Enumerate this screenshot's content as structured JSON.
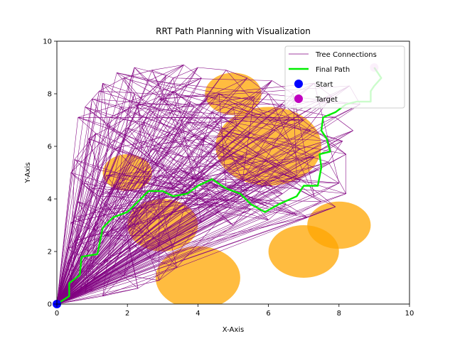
{
  "chart_data": {
    "type": "line",
    "title": "RRT Path Planning with Visualization",
    "xlabel": "X-Axis",
    "ylabel": "Y-Axis",
    "xlim": [
      0,
      10
    ],
    "ylim": [
      0,
      10
    ],
    "x_ticks": [
      "0",
      "2",
      "4",
      "6",
      "8",
      "10"
    ],
    "y_ticks": [
      "0",
      "2",
      "4",
      "6",
      "8",
      "10"
    ],
    "grid": false,
    "legend_position": "top-right",
    "colors": {
      "tree": "#800080",
      "path": "#00ee00",
      "start": "#0000ff",
      "target": "#c000c0",
      "obstacle": "#ffa500"
    },
    "obstacles": [
      {
        "cx": 5.0,
        "cy": 8.0,
        "r": 0.8
      },
      {
        "cx": 6.0,
        "cy": 6.0,
        "r": 1.5
      },
      {
        "cx": 2.0,
        "cy": 5.0,
        "r": 0.7
      },
      {
        "cx": 3.0,
        "cy": 3.0,
        "r": 1.0
      },
      {
        "cx": 4.0,
        "cy": 1.0,
        "r": 1.2
      },
      {
        "cx": 7.0,
        "cy": 2.0,
        "r": 1.0
      },
      {
        "cx": 8.0,
        "cy": 3.0,
        "r": 0.9
      }
    ],
    "series": [
      {
        "name": "Tree Connections",
        "points": [
          [
            0.0,
            0.0
          ],
          [
            0.4,
            0.8
          ],
          [
            0.3,
            1.6
          ],
          [
            0.7,
            1.2
          ],
          [
            0.5,
            2.4
          ],
          [
            0.9,
            2.0
          ],
          [
            0.4,
            3.1
          ],
          [
            1.1,
            2.8
          ],
          [
            0.6,
            3.9
          ],
          [
            1.3,
            3.6
          ],
          [
            0.8,
            4.7
          ],
          [
            1.5,
            4.2
          ],
          [
            0.5,
            5.5
          ],
          [
            1.2,
            5.1
          ],
          [
            0.9,
            6.3
          ],
          [
            1.6,
            5.9
          ],
          [
            0.6,
            7.1
          ],
          [
            1.4,
            6.8
          ],
          [
            1.0,
            7.8
          ],
          [
            1.8,
            7.5
          ],
          [
            1.3,
            8.4
          ],
          [
            2.2,
            8.0
          ],
          [
            1.7,
            8.8
          ],
          [
            2.6,
            8.5
          ],
          [
            2.2,
            9.0
          ],
          [
            3.1,
            8.7
          ],
          [
            3.6,
            9.1
          ],
          [
            4.1,
            8.6
          ],
          [
            2.9,
            7.8
          ],
          [
            3.4,
            7.4
          ],
          [
            2.5,
            6.9
          ],
          [
            3.2,
            6.5
          ],
          [
            2.7,
            5.9
          ],
          [
            3.6,
            5.6
          ],
          [
            2.9,
            4.9
          ],
          [
            3.8,
            4.5
          ],
          [
            2.4,
            4.3
          ],
          [
            3.1,
            3.9
          ],
          [
            4.3,
            4.2
          ],
          [
            4.9,
            3.8
          ],
          [
            5.4,
            4.3
          ],
          [
            4.7,
            5.0
          ],
          [
            5.3,
            5.6
          ],
          [
            4.5,
            6.1
          ],
          [
            5.1,
            6.8
          ],
          [
            4.4,
            7.3
          ],
          [
            5.6,
            7.9
          ],
          [
            6.1,
            8.5
          ],
          [
            6.7,
            8.0
          ],
          [
            7.3,
            8.4
          ],
          [
            7.8,
            7.9
          ],
          [
            8.3,
            8.3
          ],
          [
            8.6,
            7.6
          ],
          [
            7.9,
            7.1
          ],
          [
            8.4,
            6.6
          ],
          [
            7.6,
            6.2
          ],
          [
            8.2,
            5.7
          ],
          [
            7.4,
            5.1
          ],
          [
            8.0,
            4.6
          ],
          [
            7.3,
            4.1
          ],
          [
            7.9,
            3.7
          ],
          [
            7.1,
            3.3
          ],
          [
            6.5,
            3.8
          ],
          [
            6.0,
            3.2
          ],
          [
            5.5,
            3.6
          ],
          [
            5.0,
            3.0
          ],
          [
            4.6,
            3.5
          ],
          [
            4.1,
            3.1
          ],
          [
            3.6,
            3.6
          ],
          [
            2.9,
            3.3
          ],
          [
            2.3,
            3.8
          ],
          [
            1.8,
            3.2
          ],
          [
            1.3,
            3.9
          ],
          [
            1.7,
            4.6
          ],
          [
            2.1,
            5.3
          ],
          [
            1.5,
            6.1
          ],
          [
            2.0,
            6.7
          ],
          [
            2.6,
            7.3
          ],
          [
            3.3,
            8.1
          ],
          [
            3.9,
            7.5
          ],
          [
            4.6,
            8.0
          ],
          [
            3.7,
            6.9
          ],
          [
            4.2,
            6.4
          ],
          [
            3.5,
            5.1
          ],
          [
            4.0,
            4.7
          ],
          [
            4.8,
            4.4
          ],
          [
            5.8,
            4.7
          ],
          [
            6.4,
            4.2
          ],
          [
            6.9,
            4.7
          ],
          [
            6.3,
            5.3
          ],
          [
            6.9,
            5.9
          ],
          [
            6.2,
            6.6
          ],
          [
            7.0,
            7.0
          ],
          [
            6.4,
            7.6
          ],
          [
            5.8,
            7.2
          ],
          [
            5.0,
            7.5
          ],
          [
            4.3,
            7.9
          ],
          [
            3.0,
            6.1
          ],
          [
            2.2,
            5.9
          ],
          [
            1.1,
            6.5
          ],
          [
            0.4,
            5.0
          ],
          [
            1.0,
            4.4
          ],
          [
            0.3,
            2.1
          ],
          [
            1.2,
            1.5
          ],
          [
            0.6,
            0.4
          ],
          [
            1.0,
            0.9
          ],
          [
            1.5,
            1.8
          ],
          [
            2.0,
            2.4
          ],
          [
            1.4,
            2.6
          ],
          [
            2.6,
            2.6
          ],
          [
            3.3,
            2.2
          ],
          [
            2.7,
            1.7
          ],
          [
            3.4,
            1.4
          ],
          [
            2.9,
            0.9
          ],
          [
            1.9,
            1.1
          ],
          [
            1.3,
            0.3
          ],
          [
            2.3,
            0.6
          ],
          [
            1.6,
            1.4
          ],
          [
            0.8,
            0.4
          ],
          [
            1.4,
            4.9
          ],
          [
            2.5,
            4.6
          ],
          [
            3.3,
            4.4
          ],
          [
            4.4,
            3.8
          ],
          [
            5.2,
            4.1
          ],
          [
            6.0,
            3.7
          ],
          [
            6.8,
            3.4
          ],
          [
            7.5,
            3.9
          ],
          [
            8.2,
            4.2
          ],
          [
            7.7,
            5.4
          ],
          [
            8.1,
            6.2
          ],
          [
            7.2,
            6.6
          ],
          [
            6.6,
            7.1
          ],
          [
            6.0,
            8.0
          ],
          [
            5.4,
            8.6
          ],
          [
            4.8,
            8.9
          ],
          [
            4.0,
            9.0
          ],
          [
            3.3,
            8.6
          ],
          [
            2.7,
            8.9
          ],
          [
            1.9,
            8.6
          ],
          [
            1.2,
            8.1
          ],
          [
            0.8,
            7.5
          ],
          [
            1.5,
            7.1
          ],
          [
            2.3,
            7.6
          ],
          [
            3.0,
            7.1
          ],
          [
            3.8,
            7.7
          ],
          [
            4.7,
            7.1
          ],
          [
            5.5,
            6.5
          ],
          [
            6.6,
            6.1
          ],
          [
            7.3,
            5.6
          ],
          [
            6.8,
            4.9
          ],
          [
            6.1,
            4.5
          ],
          [
            5.3,
            4.8
          ],
          [
            4.6,
            4.5
          ],
          [
            3.9,
            4.1
          ],
          [
            3.2,
            4.6
          ],
          [
            2.6,
            4.1
          ],
          [
            1.9,
            4.5
          ],
          [
            1.2,
            4.1
          ],
          [
            0.7,
            4.6
          ],
          [
            0.5,
            3.3
          ]
        ]
      },
      {
        "name": "Final Path",
        "points": [
          [
            0.0,
            0.0
          ],
          [
            0.35,
            0.3
          ],
          [
            0.35,
            0.8
          ],
          [
            0.65,
            1.1
          ],
          [
            0.7,
            1.8
          ],
          [
            1.15,
            1.9
          ],
          [
            1.3,
            2.9
          ],
          [
            1.6,
            3.3
          ],
          [
            2.0,
            3.5
          ],
          [
            2.3,
            3.9
          ],
          [
            2.6,
            4.3
          ],
          [
            3.0,
            4.3
          ],
          [
            3.3,
            4.1
          ],
          [
            3.7,
            4.2
          ],
          [
            4.0,
            4.5
          ],
          [
            4.4,
            4.75
          ],
          [
            4.8,
            4.4
          ],
          [
            5.2,
            4.2
          ],
          [
            5.5,
            3.8
          ],
          [
            5.9,
            3.5
          ],
          [
            6.3,
            3.8
          ],
          [
            6.8,
            4.1
          ],
          [
            7.0,
            4.5
          ],
          [
            7.4,
            4.5
          ],
          [
            7.5,
            5.2
          ],
          [
            7.45,
            5.7
          ],
          [
            7.75,
            5.8
          ],
          [
            7.65,
            6.3
          ],
          [
            7.5,
            6.6
          ],
          [
            7.55,
            7.1
          ],
          [
            7.9,
            7.3
          ],
          [
            8.2,
            7.6
          ],
          [
            8.5,
            7.7
          ],
          [
            8.9,
            7.7
          ],
          [
            8.9,
            8.1
          ],
          [
            9.0,
            8.3
          ],
          [
            9.2,
            8.6
          ],
          [
            9.0,
            9.0
          ]
        ]
      }
    ],
    "start": {
      "name": "Start",
      "x": 0,
      "y": 0
    },
    "target": {
      "name": "Target",
      "x": 9,
      "y": 9
    },
    "legend": [
      "Tree Connections",
      "Final Path",
      "Start",
      "Target"
    ]
  }
}
